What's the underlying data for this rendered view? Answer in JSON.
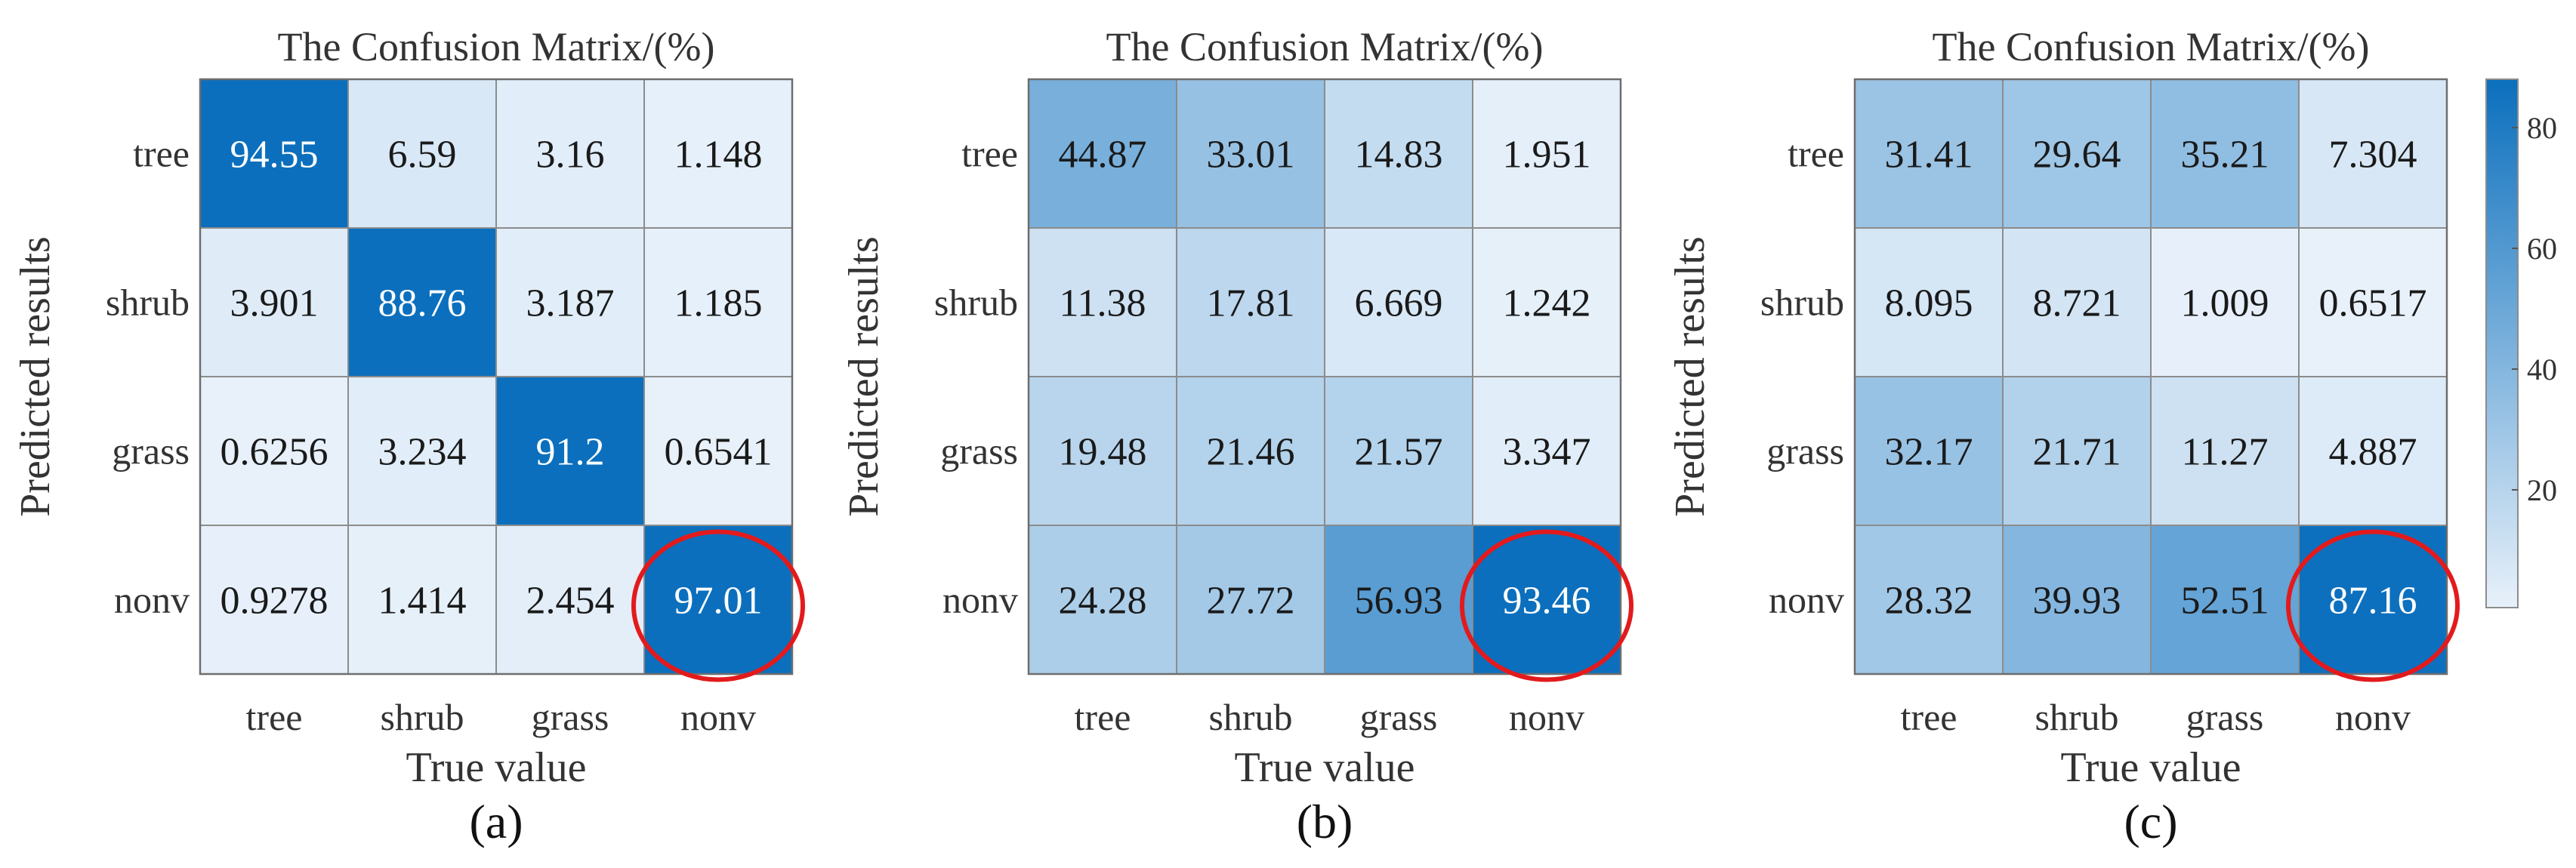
{
  "chart_data": [
    {
      "type": "heatmap",
      "title": "The Confusion Matrix/(%)",
      "xlabel": "True value",
      "ylabel": "Predicted results",
      "x_categories": [
        "tree",
        "shrub",
        "grass",
        "nonv"
      ],
      "y_categories": [
        "tree",
        "shrub",
        "grass",
        "nonv"
      ],
      "values": [
        [
          "94.55",
          "6.59",
          "3.16",
          "1.148"
        ],
        [
          "3.901",
          "88.76",
          "3.187",
          "1.185"
        ],
        [
          "0.6256",
          "3.234",
          "91.2",
          "0.6541"
        ],
        [
          "0.9278",
          "1.414",
          "2.454",
          "97.01"
        ]
      ],
      "highlight": {
        "row": 3,
        "col": 3
      },
      "panel_label": "(a)"
    },
    {
      "type": "heatmap",
      "title": "The Confusion Matrix/(%)",
      "xlabel": "True value",
      "ylabel": "Predicted results",
      "x_categories": [
        "tree",
        "shrub",
        "grass",
        "nonv"
      ],
      "y_categories": [
        "tree",
        "shrub",
        "grass",
        "nonv"
      ],
      "values": [
        [
          "44.87",
          "33.01",
          "14.83",
          "1.951"
        ],
        [
          "11.38",
          "17.81",
          "6.669",
          "1.242"
        ],
        [
          "19.48",
          "21.46",
          "21.57",
          "3.347"
        ],
        [
          "24.28",
          "27.72",
          "56.93",
          "93.46"
        ]
      ],
      "highlight": {
        "row": 3,
        "col": 3
      },
      "panel_label": "(b)"
    },
    {
      "type": "heatmap",
      "title": "The Confusion Matrix/(%)",
      "xlabel": "True value",
      "ylabel": "Predicted results",
      "x_categories": [
        "tree",
        "shrub",
        "grass",
        "nonv"
      ],
      "y_categories": [
        "tree",
        "shrub",
        "grass",
        "nonv"
      ],
      "values": [
        [
          "31.41",
          "29.64",
          "35.21",
          "7.304"
        ],
        [
          "8.095",
          "8.721",
          "1.009",
          "0.6517"
        ],
        [
          "32.17",
          "21.71",
          "11.27",
          "4.887"
        ],
        [
          "28.32",
          "39.93",
          "52.51",
          "87.16"
        ]
      ],
      "highlight": {
        "row": 3,
        "col": 3
      },
      "panel_label": "(c)"
    }
  ],
  "colorbar": {
    "range": [
      0.5,
      88
    ],
    "ticks": [
      "20",
      "40",
      "60",
      "80"
    ],
    "color_low": "#e8f1fa",
    "color_high": "#0b6fbd"
  },
  "highlight_color": "#e31a1c"
}
